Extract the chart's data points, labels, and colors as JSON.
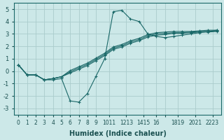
{
  "xlabel": "Humidex (Indice chaleur)",
  "background_color": "#cce8e8",
  "grid_color": "#aacccc",
  "line_color": "#1a6868",
  "xlim": [
    -0.5,
    23.5
  ],
  "ylim": [
    -3.5,
    5.5
  ],
  "yticks": [
    -3,
    -2,
    -1,
    0,
    1,
    2,
    3,
    4,
    5
  ],
  "xtick_positions": [
    0,
    1,
    2,
    3,
    4,
    5,
    6,
    7,
    8,
    9,
    10.5,
    12.5,
    14.5,
    16,
    17,
    18.5,
    20.5,
    22.5
  ],
  "xtick_labels": [
    "0",
    "1",
    "2",
    "3",
    "4",
    "5",
    "6",
    "7",
    "8",
    "9",
    "1011",
    "1213",
    "1415",
    "16",
    "",
    "1819",
    "2021",
    "2223"
  ],
  "series": [
    {
      "x": [
        0,
        1,
        2,
        3,
        4,
        5,
        6,
        7,
        8,
        9,
        10,
        11,
        12,
        13,
        14,
        15,
        16,
        17,
        18,
        19,
        20,
        21,
        22,
        23
      ],
      "y": [
        0.5,
        -0.3,
        -0.3,
        -0.7,
        -0.7,
        -0.6,
        -2.4,
        -2.5,
        -1.8,
        -0.4,
        1.0,
        4.8,
        4.9,
        4.2,
        4.0,
        3.0,
        2.8,
        2.7,
        2.8,
        2.9,
        3.0,
        3.1,
        3.2,
        3.3
      ]
    },
    {
      "x": [
        0,
        1,
        2,
        3,
        4,
        5,
        6,
        7,
        8,
        9,
        10,
        11,
        12,
        13,
        14,
        15,
        16,
        17,
        18,
        19,
        20,
        21,
        22,
        23
      ],
      "y": [
        0.5,
        -0.3,
        -0.3,
        -0.7,
        -0.6,
        -0.45,
        0.05,
        0.35,
        0.65,
        1.05,
        1.45,
        1.95,
        2.15,
        2.45,
        2.65,
        2.95,
        3.1,
        3.15,
        3.2,
        3.2,
        3.2,
        3.25,
        3.3,
        3.3
      ]
    },
    {
      "x": [
        0,
        1,
        2,
        3,
        4,
        5,
        6,
        7,
        8,
        9,
        10,
        11,
        12,
        13,
        14,
        15,
        16,
        17,
        18,
        19,
        20,
        21,
        22,
        23
      ],
      "y": [
        0.5,
        -0.3,
        -0.3,
        -0.7,
        -0.6,
        -0.45,
        -0.05,
        0.25,
        0.55,
        0.95,
        1.35,
        1.85,
        2.05,
        2.35,
        2.55,
        2.85,
        3.0,
        3.05,
        3.1,
        3.1,
        3.15,
        3.2,
        3.2,
        3.25
      ]
    },
    {
      "x": [
        0,
        1,
        2,
        3,
        4,
        5,
        6,
        7,
        8,
        9,
        10,
        11,
        12,
        13,
        14,
        15,
        16,
        17,
        18,
        19,
        20,
        21,
        22,
        23
      ],
      "y": [
        0.5,
        -0.3,
        -0.3,
        -0.7,
        -0.6,
        -0.45,
        -0.15,
        0.15,
        0.45,
        0.85,
        1.25,
        1.75,
        1.95,
        2.25,
        2.45,
        2.75,
        2.9,
        2.95,
        3.05,
        3.05,
        3.1,
        3.15,
        3.15,
        3.2
      ]
    }
  ]
}
